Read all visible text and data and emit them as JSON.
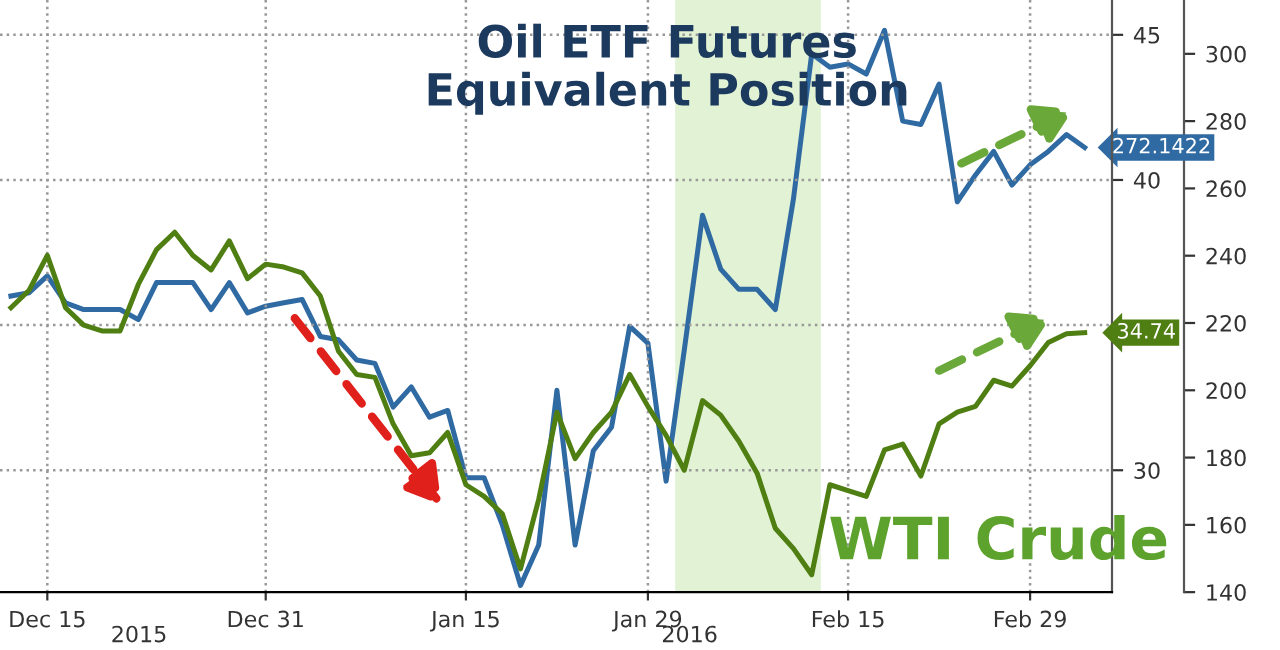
{
  "chart_data": {
    "type": "line",
    "title": "Oil ETF Futures\nEquivalent Position",
    "categories": [
      null,
      null,
      "Dec 15",
      null,
      null,
      null,
      null,
      null,
      null,
      null,
      null,
      null,
      null,
      null,
      "Dec 31",
      null,
      null,
      null,
      null,
      null,
      null,
      null,
      null,
      null,
      null,
      "Jan 15",
      null,
      null,
      null,
      null,
      null,
      null,
      null,
      null,
      null,
      "Jan 29",
      null,
      null,
      null,
      null,
      null,
      null,
      null,
      null,
      null,
      null,
      "Feb 15",
      null,
      null,
      null,
      null,
      null,
      null,
      null,
      null,
      null,
      "Feb 29",
      null,
      null,
      null
    ],
    "series": [
      {
        "name": "WTI Crude",
        "color": "#4f7f12",
        "axis": "y",
        "values": [
          35.6,
          36.2,
          37.4,
          35.6,
          35.0,
          34.8,
          34.8,
          36.4,
          37.6,
          38.2,
          37.4,
          36.9,
          37.9,
          36.6,
          37.1,
          37.0,
          36.8,
          36.0,
          34.1,
          33.3,
          33.2,
          31.6,
          30.5,
          30.6,
          31.3,
          29.5,
          29.1,
          28.5,
          26.6,
          29.0,
          32.0,
          30.4,
          31.3,
          32.0,
          33.3,
          32.2,
          31.2,
          30.0,
          32.4,
          31.9,
          31.0,
          29.9,
          28.0,
          27.3,
          26.4,
          29.5,
          29.3,
          29.1,
          30.7,
          30.9,
          29.8,
          31.6,
          32.0,
          32.2,
          33.1,
          32.9,
          33.6,
          34.4,
          34.7,
          34.74
        ],
        "value_labels": [
          null,
          null,
          null,
          null,
          null,
          null,
          null,
          null,
          null,
          null,
          null,
          null,
          null,
          null,
          null,
          null,
          null,
          null,
          null,
          null,
          null,
          null,
          null,
          null,
          null,
          null,
          null,
          null,
          null,
          null,
          null,
          null,
          null,
          null,
          null,
          null,
          null,
          null,
          null,
          null,
          null,
          null,
          null,
          null,
          null,
          null,
          null,
          null,
          null,
          null,
          null,
          null,
          null,
          null,
          null,
          null,
          null,
          null,
          null,
          "34.74"
        ]
      },
      {
        "color": "#2f6aa3",
        "axis": "y2",
        "values": [
          228,
          229,
          234,
          226,
          224,
          224,
          224,
          221,
          232,
          232,
          232,
          224,
          232,
          223,
          225,
          226,
          227,
          216,
          215,
          209,
          208,
          195,
          201,
          192,
          194,
          174,
          174,
          160,
          142,
          154,
          200,
          154,
          182,
          189,
          219,
          214,
          173,
          212,
          252,
          236,
          230,
          230,
          224,
          257,
          300,
          296,
          297,
          294,
          307,
          280,
          279,
          291,
          256,
          264,
          271,
          261,
          267,
          271,
          276,
          272.1422
        ],
        "value_labels": [
          null,
          null,
          null,
          null,
          null,
          null,
          null,
          null,
          null,
          null,
          null,
          null,
          null,
          null,
          null,
          null,
          null,
          null,
          null,
          null,
          null,
          null,
          null,
          null,
          null,
          null,
          null,
          null,
          null,
          null,
          null,
          null,
          null,
          null,
          null,
          null,
          null,
          null,
          null,
          null,
          null,
          null,
          null,
          null,
          null,
          null,
          null,
          null,
          null,
          null,
          null,
          null,
          null,
          null,
          null,
          null,
          null,
          null,
          null,
          "272.1422"
        ]
      }
    ],
    "ylim": [
      25.8,
      46.2
    ],
    "yticks": [
      30,
      {
        "value": 35,
        "label": null
      },
      40,
      45
    ],
    "y2lim": [
      140,
      316
    ],
    "y2ticks": [
      140,
      160,
      180,
      200,
      220,
      240,
      260,
      280,
      300
    ],
    "annotations": [
      "2015",
      "2016"
    ],
    "grid": true,
    "legend": false,
    "marker": "none",
    "line_style": "solid"
  }
}
